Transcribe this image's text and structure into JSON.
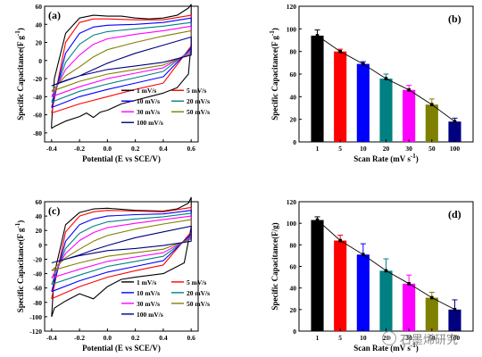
{
  "colors": {
    "1 mV/s": "#000000",
    "5 mV/s": "#ff0000",
    "10 mV/s": "#0000ff",
    "20 mV/s": "#008080",
    "30 mV/s": "#ff00ff",
    "50 mV/s": "#808000",
    "100 mV/s": "#000080"
  },
  "watermark": {
    "text": "石墨烯研究",
    "icon": "wechat-icon"
  },
  "chart_data": [
    {
      "panel": "(a)",
      "type": "line",
      "xlabel": "Potential (E vs SCE/V)",
      "ylabel": "Specific Capacitance(F g",
      "ylabel_sup": "-1",
      "ylabel_tail": ")",
      "xlim": [
        -0.45,
        0.65
      ],
      "ylim": [
        -90,
        60
      ],
      "xticks": [
        "-0.4",
        "-0.2",
        "0.0",
        "0.2",
        "0.4",
        "0.6"
      ],
      "yticks": [
        "-80",
        "-60",
        "-40",
        "-20",
        "0",
        "20",
        "40",
        "60"
      ],
      "legend": [
        "1 mV/s",
        "5 mV/s",
        "10 mV/s",
        "20 mV/s",
        "30 mV/s",
        "50 mV/s",
        "100 mV/s"
      ],
      "series": [
        {
          "name": "1 mV/s",
          "x": [
            -0.4,
            -0.38,
            -0.3,
            -0.2,
            -0.1,
            0.0,
            0.1,
            0.2,
            0.3,
            0.4,
            0.5,
            0.58,
            0.6,
            0.6,
            0.58,
            0.5,
            0.4,
            0.3,
            0.2,
            0.1,
            0.0,
            -0.05,
            -0.1,
            -0.15,
            -0.2,
            -0.3,
            -0.38,
            -0.4
          ],
          "y": [
            -70,
            -20,
            30,
            47,
            50,
            49,
            49,
            47,
            46,
            47,
            50,
            58,
            62,
            20,
            -15,
            -30,
            -36,
            -40,
            -44,
            -48,
            -55,
            -57,
            -63,
            -58,
            -62,
            -67,
            -73,
            -75
          ]
        },
        {
          "name": "5 mV/s",
          "x": [
            -0.4,
            -0.3,
            -0.2,
            -0.1,
            0.0,
            0.2,
            0.4,
            0.6,
            0.6,
            0.4,
            0.2,
            0.0,
            -0.2,
            -0.4
          ],
          "y": [
            -58,
            20,
            42,
            46,
            46,
            45,
            45,
            50,
            16,
            -25,
            -32,
            -40,
            -48,
            -58
          ]
        },
        {
          "name": "10 mV/s",
          "x": [
            -0.4,
            -0.3,
            -0.2,
            -0.1,
            0.0,
            0.2,
            0.4,
            0.6,
            0.6,
            0.4,
            0.2,
            0.0,
            -0.2,
            -0.4
          ],
          "y": [
            -52,
            8,
            30,
            37,
            39,
            40,
            42,
            47,
            14,
            -18,
            -25,
            -32,
            -40,
            -52
          ]
        },
        {
          "name": "20 mV/s",
          "x": [
            -0.4,
            -0.3,
            -0.2,
            -0.1,
            0.0,
            0.2,
            0.4,
            0.6,
            0.6,
            0.4,
            0.2,
            0.0,
            -0.2,
            -0.4
          ],
          "y": [
            -46,
            -2,
            18,
            28,
            32,
            35,
            38,
            42,
            12,
            -12,
            -19,
            -26,
            -34,
            -46
          ]
        },
        {
          "name": "30 mV/s",
          "x": [
            -0.4,
            -0.3,
            -0.2,
            -0.1,
            0.0,
            0.2,
            0.4,
            0.6,
            0.6,
            0.4,
            0.2,
            0.0,
            -0.2,
            -0.4
          ],
          "y": [
            -40,
            -10,
            6,
            18,
            24,
            29,
            33,
            38,
            10,
            -8,
            -14,
            -20,
            -29,
            -40
          ]
        },
        {
          "name": "50 mV/s",
          "x": [
            -0.4,
            -0.3,
            -0.2,
            -0.1,
            0.0,
            0.2,
            0.4,
            0.6,
            0.6,
            0.4,
            0.2,
            0.0,
            -0.2,
            -0.4
          ],
          "y": [
            -34,
            -17,
            -7,
            4,
            12,
            20,
            27,
            33,
            8,
            -5,
            -10,
            -15,
            -23,
            -34
          ]
        },
        {
          "name": "100 mV/s",
          "x": [
            -0.4,
            -0.3,
            -0.2,
            -0.1,
            0.0,
            0.2,
            0.4,
            0.6,
            0.6,
            0.4,
            0.2,
            0.0,
            -0.2,
            -0.4
          ],
          "y": [
            -28,
            -22,
            -17,
            -10,
            -3,
            8,
            17,
            26,
            6,
            -2,
            -6,
            -10,
            -17,
            -28
          ]
        }
      ]
    },
    {
      "panel": "(b)",
      "type": "bar",
      "xlabel": "Scan Rate (mV s",
      "xlabel_sup": "-1",
      "xlabel_tail": ")",
      "ylabel": "Specific Capacitance(F g",
      "ylabel_sup": "-1",
      "ylabel_tail": ")",
      "ylim": [
        0,
        120
      ],
      "yticks": [
        "0",
        "20",
        "40",
        "60",
        "80",
        "100",
        "120"
      ],
      "categories": [
        "1",
        "5",
        "10",
        "20",
        "30",
        "50",
        "100"
      ],
      "values": [
        94,
        80,
        69,
        56,
        46,
        33,
        18
      ],
      "errors": [
        5,
        2,
        2,
        4,
        4,
        5,
        3
      ],
      "bar_colors": [
        "#000000",
        "#ff0000",
        "#0000ff",
        "#008080",
        "#ff00ff",
        "#808000",
        "#000080"
      ],
      "trend_line": true
    },
    {
      "panel": "(c)",
      "type": "line",
      "xlabel": "Potential (E vs SCE/V)",
      "ylabel": "Specific Capacitance(F g",
      "ylabel_sup": "-1",
      "ylabel_tail": ")",
      "xlim": [
        -0.45,
        0.65
      ],
      "ylim": [
        -120,
        60
      ],
      "xticks": [
        "-0.4",
        "-0.2",
        "0.0",
        "0.2",
        "0.4",
        "0.6"
      ],
      "yticks": [
        "-120",
        "-100",
        "-80",
        "-60",
        "-40",
        "-20",
        "0",
        "20",
        "40",
        "60"
      ],
      "legend": [
        "1 mV/s",
        "5 mV/s",
        "10 mV/s",
        "20 mV/s",
        "30 mV/s",
        "50 mV/s",
        "100 mV/s"
      ],
      "series": [
        {
          "name": "1 mV/s",
          "x": [
            -0.4,
            -0.38,
            -0.3,
            -0.2,
            -0.1,
            0.0,
            0.2,
            0.4,
            0.5,
            0.58,
            0.6,
            0.6,
            0.55,
            0.4,
            0.2,
            0.1,
            0.0,
            -0.1,
            -0.2,
            -0.3,
            -0.38,
            -0.4
          ],
          "y": [
            -100,
            -40,
            28,
            45,
            50,
            51,
            48,
            47,
            50,
            58,
            66,
            25,
            -25,
            -40,
            -45,
            -48,
            -58,
            -75,
            -68,
            -78,
            -88,
            -100
          ]
        },
        {
          "name": "5 mV/s",
          "x": [
            -0.4,
            -0.3,
            -0.2,
            -0.1,
            0.0,
            0.2,
            0.4,
            0.6,
            0.6,
            0.4,
            0.2,
            0.0,
            -0.2,
            -0.4
          ],
          "y": [
            -75,
            18,
            40,
            46,
            48,
            47,
            46,
            52,
            18,
            -28,
            -36,
            -45,
            -58,
            -75
          ]
        },
        {
          "name": "10 mV/s",
          "x": [
            -0.4,
            -0.3,
            -0.2,
            -0.1,
            0.0,
            0.2,
            0.4,
            0.6,
            0.6,
            0.4,
            0.2,
            0.0,
            -0.2,
            -0.4
          ],
          "y": [
            -65,
            5,
            28,
            36,
            40,
            42,
            43,
            48,
            15,
            -22,
            -30,
            -38,
            -50,
            -65
          ]
        },
        {
          "name": "20 mV/s",
          "x": [
            -0.4,
            -0.3,
            -0.2,
            -0.1,
            0.0,
            0.2,
            0.4,
            0.6,
            0.6,
            0.4,
            0.2,
            0.0,
            -0.2,
            -0.4
          ],
          "y": [
            -55,
            -5,
            16,
            26,
            32,
            36,
            39,
            44,
            12,
            -16,
            -23,
            -30,
            -42,
            -55
          ]
        },
        {
          "name": "30 mV/s",
          "x": [
            -0.4,
            -0.3,
            -0.2,
            -0.1,
            0.0,
            0.2,
            0.4,
            0.6,
            0.6,
            0.4,
            0.2,
            0.0,
            -0.2,
            -0.4
          ],
          "y": [
            -46,
            -12,
            6,
            17,
            24,
            30,
            35,
            40,
            10,
            -11,
            -17,
            -23,
            -34,
            -46
          ]
        },
        {
          "name": "50 mV/s",
          "x": [
            -0.4,
            -0.3,
            -0.2,
            -0.1,
            0.0,
            0.2,
            0.4,
            0.6,
            0.6,
            0.4,
            0.2,
            0.0,
            -0.2,
            -0.4
          ],
          "y": [
            -36,
            -18,
            -6,
            5,
            13,
            22,
            29,
            35,
            8,
            -6,
            -11,
            -16,
            -25,
            -36
          ]
        },
        {
          "name": "100 mV/s",
          "x": [
            -0.4,
            -0.3,
            -0.2,
            -0.1,
            0.0,
            0.2,
            0.4,
            0.6,
            0.6,
            0.4,
            0.2,
            0.0,
            -0.2,
            -0.4
          ],
          "y": [
            -25,
            -20,
            -14,
            -7,
            -1,
            10,
            18,
            26,
            5,
            -1,
            -5,
            -8,
            -15,
            -25
          ]
        }
      ]
    },
    {
      "panel": "(d)",
      "type": "bar",
      "xlabel": "Scan Rate (mV s",
      "xlabel_sup": "-1",
      "xlabel_tail": ")",
      "ylabel": "Specific Capacitance(F/g)",
      "ylabel_sup": "",
      "ylabel_tail": "",
      "ylim": [
        0,
        120
      ],
      "yticks": [
        "0",
        "20",
        "40",
        "60",
        "80",
        "100",
        "120"
      ],
      "categories": [
        "1",
        "5",
        "10",
        "20",
        "30",
        "50",
        "100"
      ],
      "values": [
        103,
        84,
        71,
        56,
        44,
        31,
        20
      ],
      "errors": [
        3,
        5,
        10,
        11,
        8,
        5,
        9
      ],
      "bar_colors": [
        "#000000",
        "#ff0000",
        "#0000ff",
        "#008080",
        "#ff00ff",
        "#808000",
        "#000080"
      ],
      "trend_line": true
    }
  ]
}
